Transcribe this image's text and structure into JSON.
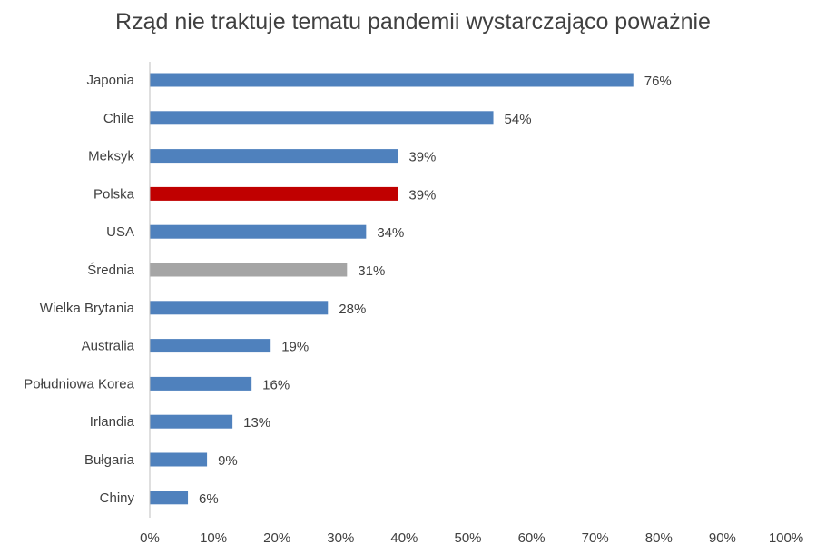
{
  "chart_data": {
    "type": "bar",
    "orientation": "horizontal",
    "title": "Rząd nie traktuje tematu pandemii wystarczająco poważnie",
    "xlabel": "",
    "ylabel": "",
    "categories": [
      "Japonia",
      "Chile",
      "Meksyk",
      "Polska",
      "USA",
      "Średnia",
      "Wielka Brytania",
      "Australia",
      "Południowa Korea",
      "Irlandia",
      "Bułgaria",
      "Chiny"
    ],
    "values": [
      76,
      54,
      39,
      39,
      34,
      31,
      28,
      19,
      16,
      13,
      9,
      6
    ],
    "value_labels": [
      "76%",
      "54%",
      "39%",
      "39%",
      "34%",
      "31%",
      "28%",
      "19%",
      "16%",
      "13%",
      "9%",
      "6%"
    ],
    "bar_colors": [
      "#4f81bd",
      "#4f81bd",
      "#4f81bd",
      "#c00000",
      "#4f81bd",
      "#a5a5a5",
      "#4f81bd",
      "#4f81bd",
      "#4f81bd",
      "#4f81bd",
      "#4f81bd",
      "#4f81bd"
    ],
    "xlim": [
      0,
      100
    ],
    "x_ticks": [
      "0%",
      "10%",
      "20%",
      "30%",
      "40%",
      "50%",
      "60%",
      "70%",
      "80%",
      "90%",
      "100%"
    ],
    "grid": false,
    "legend": "none"
  }
}
